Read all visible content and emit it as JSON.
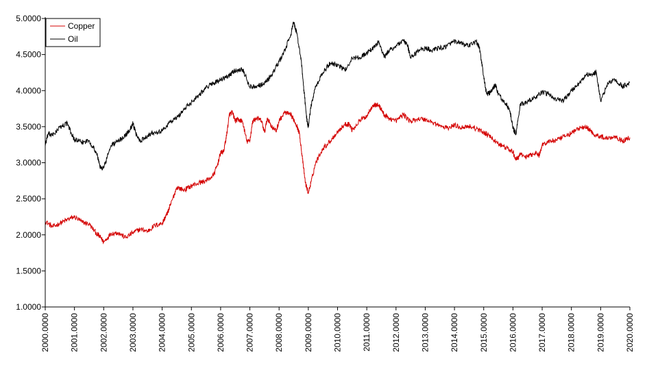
{
  "chart_data": {
    "type": "line",
    "title": "",
    "xlabel": "",
    "ylabel": "",
    "xlim": [
      2000,
      2020
    ],
    "ylim": [
      1,
      5
    ],
    "grid": false,
    "legend_position": "top-left",
    "x_ticks": [
      "2000.0000",
      "2001.0000",
      "2002.0000",
      "2003.0000",
      "2004.0000",
      "2005.0000",
      "2006.0000",
      "2007.0000",
      "2008.0000",
      "2009.0000",
      "2010.0000",
      "2011.0000",
      "2012.0000",
      "2013.0000",
      "2014.0000",
      "2015.0000",
      "2016.0000",
      "2017.0000",
      "2018.0000",
      "2019.0000",
      "2020.0000"
    ],
    "y_ticks": [
      "1.0000",
      "1.5000",
      "2.0000",
      "2.5000",
      "3.0000",
      "3.5000",
      "4.0000",
      "4.5000",
      "5.0000"
    ],
    "series": [
      {
        "name": "Copper",
        "color": "#d40000",
        "x": [
          2000.0,
          2000.25,
          2000.5,
          2000.75,
          2001.0,
          2001.25,
          2001.5,
          2001.75,
          2001.9,
          2002.0,
          2002.25,
          2002.5,
          2002.75,
          2003.0,
          2003.25,
          2003.5,
          2003.75,
          2004.0,
          2004.1,
          2004.2,
          2004.3,
          2004.5,
          2004.75,
          2005.0,
          2005.25,
          2005.5,
          2005.75,
          2005.9,
          2006.0,
          2006.1,
          2006.2,
          2006.3,
          2006.4,
          2006.5,
          2006.6,
          2006.75,
          2006.9,
          2007.0,
          2007.1,
          2007.25,
          2007.4,
          2007.5,
          2007.6,
          2007.75,
          2007.9,
          2008.0,
          2008.2,
          2008.4,
          2008.5,
          2008.6,
          2008.7,
          2008.8,
          2008.9,
          2009.0,
          2009.1,
          2009.25,
          2009.5,
          2009.75,
          2010.0,
          2010.25,
          2010.4,
          2010.5,
          2010.75,
          2011.0,
          2011.2,
          2011.4,
          2011.5,
          2011.6,
          2011.75,
          2012.0,
          2012.25,
          2012.5,
          2012.75,
          2013.0,
          2013.25,
          2013.5,
          2013.75,
          2014.0,
          2014.25,
          2014.5,
          2014.75,
          2015.0,
          2015.1,
          2015.25,
          2015.5,
          2015.75,
          2016.0,
          2016.1,
          2016.25,
          2016.5,
          2016.75,
          2016.9,
          2017.0,
          2017.25,
          2017.5,
          2017.75,
          2018.0,
          2018.25,
          2018.5,
          2018.6,
          2018.75,
          2019.0,
          2019.25,
          2019.5,
          2019.75,
          2020.0
        ],
        "values": [
          2.19,
          2.11,
          2.16,
          2.21,
          2.25,
          2.18,
          2.15,
          2.02,
          1.96,
          1.9,
          2.02,
          2.03,
          1.96,
          2.03,
          2.08,
          2.05,
          2.13,
          2.16,
          2.24,
          2.32,
          2.43,
          2.66,
          2.62,
          2.68,
          2.72,
          2.75,
          2.82,
          2.98,
          3.14,
          3.15,
          3.37,
          3.67,
          3.7,
          3.58,
          3.6,
          3.57,
          3.29,
          3.31,
          3.58,
          3.62,
          3.58,
          3.42,
          3.62,
          3.5,
          3.44,
          3.58,
          3.7,
          3.66,
          3.6,
          3.52,
          3.4,
          3.05,
          2.72,
          2.58,
          2.74,
          3.0,
          3.2,
          3.3,
          3.43,
          3.53,
          3.54,
          3.45,
          3.58,
          3.65,
          3.8,
          3.8,
          3.74,
          3.66,
          3.62,
          3.58,
          3.67,
          3.57,
          3.61,
          3.6,
          3.56,
          3.51,
          3.48,
          3.52,
          3.49,
          3.51,
          3.47,
          3.42,
          3.4,
          3.35,
          3.26,
          3.21,
          3.15,
          3.04,
          3.11,
          3.08,
          3.14,
          3.1,
          3.25,
          3.3,
          3.31,
          3.36,
          3.41,
          3.48,
          3.49,
          3.47,
          3.4,
          3.36,
          3.34,
          3.37,
          3.3,
          3.35
        ]
      },
      {
        "name": "Oil",
        "color": "#000000",
        "x": [
          2000.0,
          2000.1,
          2000.25,
          2000.5,
          2000.75,
          2000.9,
          2001.0,
          2001.25,
          2001.5,
          2001.75,
          2001.9,
          2002.0,
          2002.25,
          2002.5,
          2002.75,
          2002.9,
          2003.0,
          2003.1,
          2003.25,
          2003.5,
          2003.75,
          2004.0,
          2004.25,
          2004.5,
          2004.75,
          2005.0,
          2005.25,
          2005.5,
          2005.75,
          2006.0,
          2006.25,
          2006.5,
          2006.75,
          2007.0,
          2007.25,
          2007.5,
          2007.75,
          2008.0,
          2008.2,
          2008.4,
          2008.5,
          2008.6,
          2008.75,
          2008.85,
          2008.95,
          2009.0,
          2009.1,
          2009.25,
          2009.5,
          2009.75,
          2010.0,
          2010.25,
          2010.5,
          2010.75,
          2011.0,
          2011.25,
          2011.4,
          2011.6,
          2011.75,
          2012.0,
          2012.25,
          2012.4,
          2012.5,
          2012.75,
          2013.0,
          2013.25,
          2013.5,
          2013.75,
          2014.0,
          2014.25,
          2014.5,
          2014.75,
          2014.85,
          2015.0,
          2015.1,
          2015.25,
          2015.4,
          2015.5,
          2015.75,
          2015.9,
          2016.0,
          2016.1,
          2016.25,
          2016.5,
          2016.75,
          2017.0,
          2017.25,
          2017.5,
          2017.75,
          2018.0,
          2018.25,
          2018.5,
          2018.75,
          2018.85,
          2019.0,
          2019.25,
          2019.5,
          2019.75,
          2020.0
        ],
        "values": [
          3.25,
          3.4,
          3.38,
          3.49,
          3.55,
          3.4,
          3.32,
          3.28,
          3.31,
          3.14,
          2.92,
          2.93,
          3.24,
          3.3,
          3.38,
          3.46,
          3.55,
          3.4,
          3.3,
          3.38,
          3.43,
          3.44,
          3.56,
          3.62,
          3.74,
          3.84,
          3.94,
          4.04,
          4.11,
          4.14,
          4.2,
          4.28,
          4.3,
          4.05,
          4.07,
          4.1,
          4.22,
          4.4,
          4.56,
          4.78,
          4.95,
          4.8,
          4.45,
          4.0,
          3.6,
          3.5,
          3.8,
          4.05,
          4.25,
          4.38,
          4.36,
          4.28,
          4.45,
          4.46,
          4.52,
          4.6,
          4.68,
          4.46,
          4.55,
          4.62,
          4.7,
          4.62,
          4.45,
          4.55,
          4.59,
          4.56,
          4.59,
          4.62,
          4.68,
          4.65,
          4.62,
          4.68,
          4.6,
          4.2,
          3.95,
          3.98,
          4.08,
          3.95,
          3.82,
          3.72,
          3.48,
          3.4,
          3.8,
          3.85,
          3.9,
          3.97,
          3.95,
          3.87,
          3.87,
          4.0,
          4.1,
          4.22,
          4.23,
          4.25,
          3.86,
          4.1,
          4.15,
          4.05,
          4.12
        ]
      }
    ]
  }
}
